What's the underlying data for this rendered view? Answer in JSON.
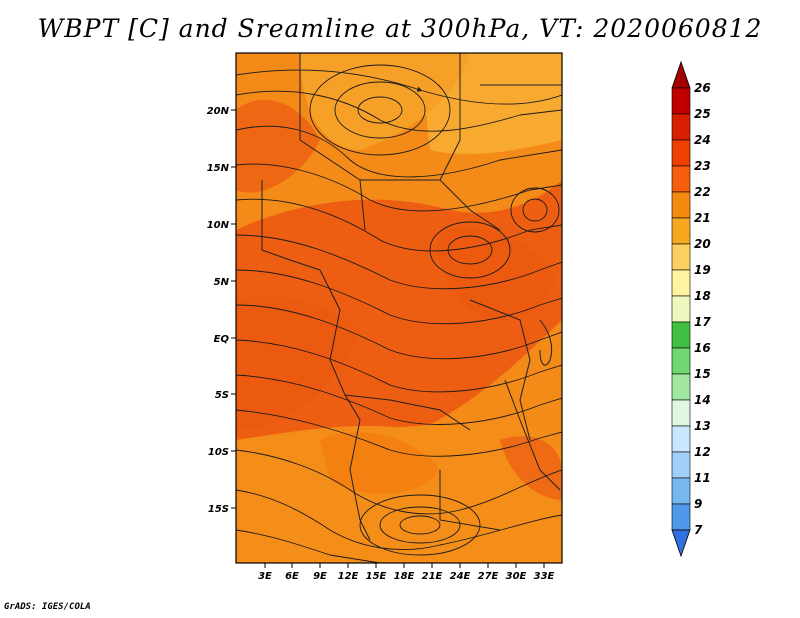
{
  "title": "WBPT [C] and Sreamline at 300hPa, VT: 2020060812",
  "credit": "GrADS: IGES/COLA",
  "lat_labels": [
    "20N",
    "15N",
    "10N",
    "5N",
    "EQ",
    "5S",
    "10S",
    "15S"
  ],
  "lon_labels": [
    "3E",
    "6E",
    "9E",
    "12E",
    "15E",
    "18E",
    "21E",
    "24E",
    "27E",
    "30E",
    "33E"
  ],
  "colorbar": {
    "labels": [
      "26",
      "25",
      "24",
      "23",
      "22",
      "21",
      "20",
      "19",
      "18",
      "17",
      "16",
      "15",
      "14",
      "13",
      "12",
      "11",
      "9",
      "7"
    ],
    "colors": [
      "#a50000",
      "#c00000",
      "#d82000",
      "#ee4000",
      "#f46010",
      "#f68a10",
      "#f8a820",
      "#fcd060",
      "#fdf3a0",
      "#f0f8c0",
      "#40c040",
      "#70d870",
      "#a0e8a0",
      "#e0f8e0",
      "#c8e8ff",
      "#a0d0f8",
      "#78b8f0",
      "#5098e8",
      "#3070e0"
    ]
  }
}
